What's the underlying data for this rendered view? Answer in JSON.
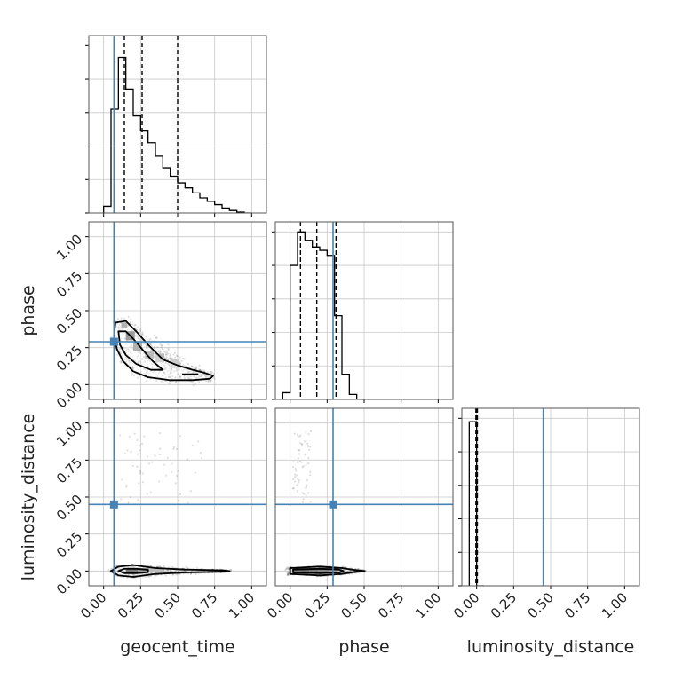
{
  "chart_data": {
    "type": "corner",
    "parameters": [
      "geocent_time",
      "phase",
      "luminosity_distance"
    ],
    "truths": [
      0.07,
      0.29,
      0.45
    ],
    "truth_color": "#4682b4",
    "axis_range": [
      -0.1,
      1.1
    ],
    "tick_values": [
      0.0,
      0.25,
      0.5,
      0.75,
      1.0
    ],
    "tick_labels": [
      "0.00",
      "0.25",
      "0.50",
      "0.75",
      "1.00"
    ],
    "grid": true,
    "histograms": [
      {
        "parameter": "geocent_time",
        "bin_edges": [
          0.0,
          0.05,
          0.1,
          0.15,
          0.2,
          0.25,
          0.3,
          0.35,
          0.4,
          0.45,
          0.5,
          0.55,
          0.6,
          0.65,
          0.7,
          0.75,
          0.8,
          0.85,
          0.9,
          0.95,
          1.0
        ],
        "heights": [
          0.04,
          0.62,
          0.93,
          0.74,
          0.58,
          0.49,
          0.42,
          0.34,
          0.27,
          0.22,
          0.18,
          0.15,
          0.12,
          0.09,
          0.07,
          0.05,
          0.03,
          0.015,
          0.005,
          0.0
        ],
        "quantiles": [
          0.14,
          0.26,
          0.5
        ]
      },
      {
        "parameter": "phase",
        "bin_edges": [
          -0.05,
          0.0,
          0.05,
          0.1,
          0.15,
          0.2,
          0.25,
          0.3,
          0.35,
          0.4,
          0.45,
          0.5
        ],
        "heights": [
          0.04,
          0.8,
          1.0,
          0.95,
          0.91,
          0.89,
          0.86,
          0.5,
          0.15,
          0.03,
          0.0
        ],
        "quantiles": [
          0.07,
          0.18,
          0.31
        ]
      },
      {
        "parameter": "luminosity_distance",
        "bin_edges": [
          -0.05,
          0.0,
          0.05
        ],
        "heights": [
          0.98,
          0.0
        ],
        "quantiles": [
          -0.005,
          0.0,
          0.005
        ]
      }
    ],
    "scatter_2d": [
      {
        "x_param": "geocent_time",
        "y_param": "phase",
        "density_blocks": [
          {
            "x": 0.15,
            "y": 0.3,
            "w": 0.06,
            "h": 0.06,
            "shade": "#666666"
          },
          {
            "x": 0.2,
            "y": 0.23,
            "w": 0.06,
            "h": 0.06,
            "shade": "#888888"
          },
          {
            "x": 0.28,
            "y": 0.17,
            "w": 0.06,
            "h": 0.06,
            "shade": "#999999"
          },
          {
            "x": 0.35,
            "y": 0.15,
            "w": 0.06,
            "h": 0.06,
            "shade": "#bbbbbb"
          },
          {
            "x": 0.45,
            "y": 0.11,
            "w": 0.06,
            "h": 0.06,
            "shade": "#cccccc"
          },
          {
            "x": 0.12,
            "y": 0.38,
            "w": 0.04,
            "h": 0.04,
            "shade": "#888888"
          }
        ],
        "contour_outer": [
          [
            0.08,
            0.42
          ],
          [
            0.15,
            0.43
          ],
          [
            0.22,
            0.36
          ],
          [
            0.3,
            0.27
          ],
          [
            0.4,
            0.17
          ],
          [
            0.5,
            0.13
          ],
          [
            0.6,
            0.1
          ],
          [
            0.68,
            0.08
          ],
          [
            0.74,
            0.06
          ],
          [
            0.72,
            0.04
          ],
          [
            0.6,
            0.03
          ],
          [
            0.45,
            0.03
          ],
          [
            0.3,
            0.05
          ],
          [
            0.2,
            0.09
          ],
          [
            0.13,
            0.16
          ],
          [
            0.09,
            0.24
          ],
          [
            0.07,
            0.33
          ]
        ],
        "contour_inner": [
          [
            0.1,
            0.36
          ],
          [
            0.15,
            0.36
          ],
          [
            0.2,
            0.31
          ],
          [
            0.26,
            0.24
          ],
          [
            0.33,
            0.16
          ],
          [
            0.4,
            0.1
          ],
          [
            0.32,
            0.1
          ],
          [
            0.22,
            0.14
          ],
          [
            0.15,
            0.2
          ],
          [
            0.11,
            0.27
          ]
        ],
        "contour_tail": [
          [
            0.53,
            0.07
          ],
          [
            0.64,
            0.07
          ]
        ]
      },
      {
        "x_param": "geocent_time",
        "y_param": "luminosity_distance",
        "density_blocks": [
          {
            "x": 0.15,
            "y": -0.01,
            "w": 0.08,
            "h": 0.03,
            "shade": "#333333"
          },
          {
            "x": 0.23,
            "y": -0.01,
            "w": 0.08,
            "h": 0.03,
            "shade": "#666666"
          },
          {
            "x": 0.31,
            "y": -0.01,
            "w": 0.1,
            "h": 0.03,
            "shade": "#999999"
          }
        ],
        "contour_outer": [
          [
            0.05,
            0.0
          ],
          [
            0.1,
            0.03
          ],
          [
            0.2,
            0.04
          ],
          [
            0.35,
            0.02
          ],
          [
            0.55,
            0.01
          ],
          [
            0.8,
            0.005
          ],
          [
            0.85,
            0.0
          ],
          [
            0.8,
            -0.005
          ],
          [
            0.55,
            -0.01
          ],
          [
            0.35,
            -0.02
          ],
          [
            0.2,
            -0.04
          ],
          [
            0.1,
            -0.03
          ]
        ],
        "contour_inner": [
          [
            0.1,
            0.0
          ],
          [
            0.14,
            0.015
          ],
          [
            0.22,
            0.015
          ],
          [
            0.3,
            0.008
          ],
          [
            0.3,
            -0.008
          ],
          [
            0.22,
            -0.015
          ],
          [
            0.14,
            -0.015
          ]
        ]
      },
      {
        "x_param": "phase",
        "y_param": "luminosity_distance",
        "density_blocks": [
          {
            "x": 0.02,
            "y": -0.01,
            "w": 0.05,
            "h": 0.03,
            "shade": "#333333"
          },
          {
            "x": 0.07,
            "y": -0.01,
            "w": 0.06,
            "h": 0.03,
            "shade": "#222222"
          },
          {
            "x": 0.13,
            "y": -0.01,
            "w": 0.06,
            "h": 0.03,
            "shade": "#333333"
          },
          {
            "x": 0.19,
            "y": -0.01,
            "w": 0.07,
            "h": 0.03,
            "shade": "#444444"
          },
          {
            "x": 0.26,
            "y": -0.01,
            "w": 0.06,
            "h": 0.03,
            "shade": "#666666"
          },
          {
            "x": 0.32,
            "y": -0.01,
            "w": 0.05,
            "h": 0.03,
            "shade": "#999999"
          }
        ],
        "contour_outer": [
          [
            0.0,
            0.02
          ],
          [
            0.2,
            0.03
          ],
          [
            0.35,
            0.02
          ],
          [
            0.45,
            0.005
          ],
          [
            0.5,
            0.0
          ],
          [
            0.45,
            -0.005
          ],
          [
            0.35,
            -0.02
          ],
          [
            0.2,
            -0.03
          ],
          [
            0.0,
            -0.02
          ]
        ],
        "contour_inner": [
          [
            0.02,
            0.01
          ],
          [
            0.2,
            0.015
          ],
          [
            0.33,
            0.01
          ],
          [
            0.36,
            0.0
          ],
          [
            0.33,
            -0.01
          ],
          [
            0.2,
            -0.015
          ],
          [
            0.02,
            -0.01
          ]
        ]
      }
    ]
  }
}
